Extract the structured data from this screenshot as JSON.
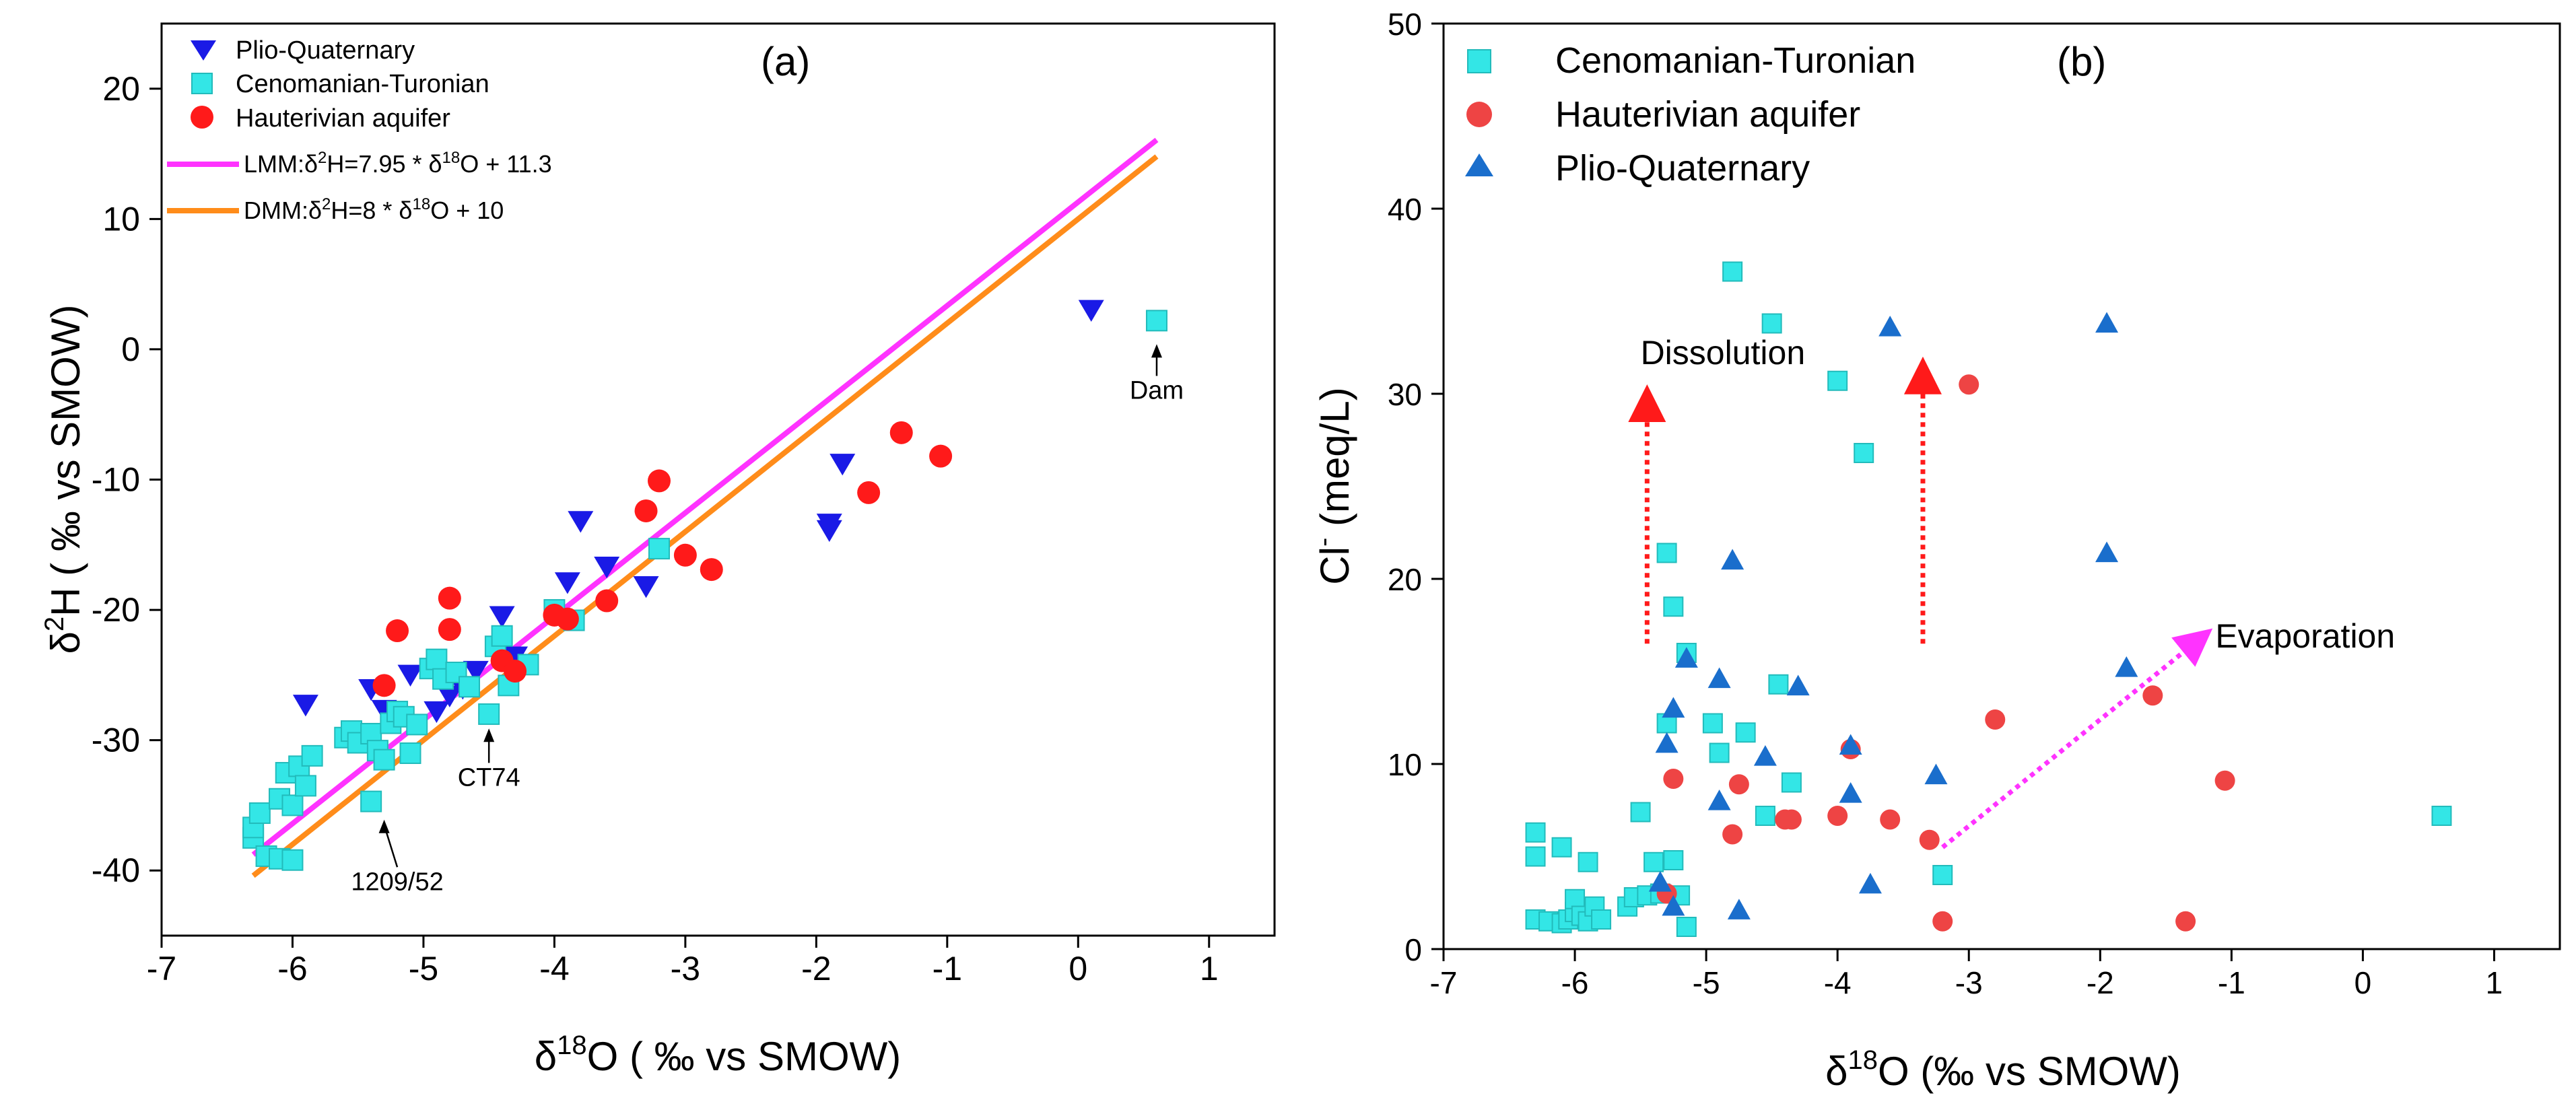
{
  "chart_data": [
    {
      "type": "scatter",
      "panel_label": "(a)",
      "xlabel_pre": "δ",
      "xlabel_sup": "18",
      "xlabel_post": "O ( ‰ vs SMOW)",
      "ylabel_pre": "δ",
      "ylabel_sup": "2",
      "ylabel_post": "H ( ‰ vs SMOW)",
      "xlim": [
        -7,
        1.5
      ],
      "ylim": [
        -45,
        25
      ],
      "xticks": [
        -7,
        -6,
        -5,
        -4,
        -3,
        -2,
        -1,
        0,
        1
      ],
      "yticks": [
        -40,
        -30,
        -20,
        -10,
        0,
        10,
        20
      ],
      "series": [
        {
          "name": "Plio-Quaternary",
          "marker": "triangle-down",
          "color": "#1a1ae6",
          "points": [
            [
              -5.9,
              -27.3
            ],
            [
              -5.4,
              -26.1
            ],
            [
              -5.3,
              -27.7
            ],
            [
              -5.1,
              -25.0
            ],
            [
              -4.9,
              -27.8
            ],
            [
              -4.8,
              -26.6
            ],
            [
              -4.7,
              -26.0
            ],
            [
              -4.6,
              -24.7
            ],
            [
              -4.4,
              -20.5
            ],
            [
              -4.3,
              -23.6
            ],
            [
              -3.9,
              -17.9
            ],
            [
              -3.8,
              -13.2
            ],
            [
              -3.6,
              -16.7
            ],
            [
              -3.3,
              -18.2
            ],
            [
              -1.9,
              -13.9
            ],
            [
              -1.9,
              -13.4
            ],
            [
              -1.8,
              -8.8
            ],
            [
              0.1,
              3.0
            ]
          ]
        },
        {
          "name": "Cenomanian-Turonian",
          "marker": "square",
          "color": "#33e6e6",
          "points": [
            [
              -6.3,
              -37.5
            ],
            [
              -6.3,
              -36.7
            ],
            [
              -6.2,
              -38.9
            ],
            [
              -6.25,
              -35.6
            ],
            [
              -6.1,
              -39.1
            ],
            [
              -6.0,
              -39.2
            ],
            [
              -6.1,
              -34.5
            ],
            [
              -6.05,
              -32.5
            ],
            [
              -6.0,
              -35.0
            ],
            [
              -5.95,
              -32.0
            ],
            [
              -5.9,
              -33.5
            ],
            [
              -5.85,
              -31.2
            ],
            [
              -5.6,
              -29.8
            ],
            [
              -5.55,
              -29.3
            ],
            [
              -5.5,
              -30.2
            ],
            [
              -5.4,
              -29.5
            ],
            [
              -5.35,
              -30.8
            ],
            [
              -5.3,
              -31.5
            ],
            [
              -5.25,
              -28.7
            ],
            [
              -5.2,
              -27.8
            ],
            [
              -5.15,
              -28.2
            ],
            [
              -5.1,
              -31.0
            ],
            [
              -5.05,
              -28.8
            ],
            [
              -4.95,
              -24.5
            ],
            [
              -4.9,
              -23.8
            ],
            [
              -4.85,
              -25.3
            ],
            [
              -4.75,
              -24.8
            ],
            [
              -4.65,
              -25.9
            ],
            [
              -4.45,
              -22.8
            ],
            [
              -4.4,
              -22.0
            ],
            [
              -4.35,
              -25.8
            ],
            [
              -4.2,
              -24.2
            ],
            [
              -4.0,
              -20.0
            ],
            [
              -3.85,
              -20.8
            ],
            [
              -3.2,
              -15.3
            ],
            [
              -5.4,
              -34.7
            ],
            [
              -4.5,
              -28.0
            ],
            [
              0.6,
              2.2
            ]
          ]
        },
        {
          "name": "Hauterivian aquifer",
          "marker": "circle",
          "color": "#ff1a1a",
          "points": [
            [
              -5.3,
              -25.8
            ],
            [
              -5.2,
              -21.6
            ],
            [
              -4.8,
              -21.5
            ],
            [
              -4.8,
              -19.1
            ],
            [
              -4.4,
              -23.9
            ],
            [
              -4.3,
              -24.7
            ],
            [
              -4.0,
              -20.4
            ],
            [
              -3.9,
              -20.7
            ],
            [
              -3.6,
              -19.3
            ],
            [
              -3.3,
              -12.4
            ],
            [
              -3.2,
              -10.1
            ],
            [
              -3.0,
              -15.8
            ],
            [
              -2.8,
              -16.9
            ],
            [
              -1.6,
              -11.0
            ],
            [
              -1.35,
              -6.4
            ],
            [
              -1.05,
              -8.2
            ]
          ]
        }
      ],
      "lines": [
        {
          "name": "LMM:δ²H=7.95 * δ¹⁸O + 11.3",
          "slope": 7.95,
          "intercept": 11.3,
          "x_range": [
            -6.3,
            0.6
          ],
          "color": "#ff33ff"
        },
        {
          "name": "DMM:δ²H=8 * δ¹⁸O + 10",
          "slope": 8,
          "intercept": 10,
          "x_range": [
            -6.3,
            0.6
          ],
          "color": "#ff8c1a"
        }
      ],
      "legend_labels": {
        "s0": "Plio-Quaternary",
        "s1": "Cenomanian-Turonian",
        "s2": "Hauterivian aquifer",
        "l0_pre": "LMM:δ",
        "l0_sup1": "2",
        "l0_mid": "H=7.95 * δ",
        "l0_sup2": "18",
        "l0_post": "O + 11.3",
        "l1_pre": "DMM:δ",
        "l1_sup1": "2",
        "l1_mid": "H=8 * δ",
        "l1_sup2": "18",
        "l1_post": "O + 10"
      },
      "annotations": [
        {
          "text": "Dam",
          "at": [
            0.6,
            0.5
          ],
          "text_at": [
            0.6,
            -3.8
          ]
        },
        {
          "text": "CT74",
          "at": [
            -4.5,
            -29.0
          ],
          "text_at": [
            -4.5,
            -33.5
          ]
        },
        {
          "text": "1209/52",
          "at": [
            -5.3,
            -36.0
          ],
          "text_at": [
            -5.2,
            -41.5
          ]
        }
      ]
    },
    {
      "type": "scatter",
      "panel_label": "(b)",
      "xlabel_pre": "δ",
      "xlabel_sup": "18",
      "xlabel_post": "O (‰ vs SMOW)",
      "ylabel_pre": "Cl",
      "ylabel_sup": "-",
      "ylabel_post": " (meq/L)",
      "xlim": [
        -7,
        1.5
      ],
      "ylim": [
        0,
        50
      ],
      "xticks": [
        -7,
        -6,
        -5,
        -4,
        -3,
        -2,
        -1,
        0,
        1
      ],
      "yticks": [
        0,
        10,
        20,
        30,
        40,
        50
      ],
      "series": [
        {
          "name": "Cenomanian-Turonian",
          "marker": "square",
          "color": "#33e6e6",
          "points": [
            [
              -6.3,
              6.3
            ],
            [
              -6.3,
              5.0
            ],
            [
              -6.3,
              1.6
            ],
            [
              -6.2,
              1.5
            ],
            [
              -6.1,
              5.5
            ],
            [
              -6.1,
              1.4
            ],
            [
              -6.05,
              1.6
            ],
            [
              -6.0,
              2.0
            ],
            [
              -6.0,
              2.7
            ],
            [
              -5.95,
              1.8
            ],
            [
              -5.9,
              4.7
            ],
            [
              -5.9,
              1.5
            ],
            [
              -5.85,
              2.3
            ],
            [
              -5.8,
              1.6
            ],
            [
              -5.6,
              2.3
            ],
            [
              -5.55,
              2.8
            ],
            [
              -5.5,
              7.4
            ],
            [
              -5.45,
              2.9
            ],
            [
              -5.4,
              4.7
            ],
            [
              -5.35,
              3.0
            ],
            [
              -5.3,
              21.4
            ],
            [
              -5.3,
              12.2
            ],
            [
              -5.25,
              18.5
            ],
            [
              -5.25,
              4.8
            ],
            [
              -5.2,
              2.9
            ],
            [
              -5.15,
              16.0
            ],
            [
              -5.15,
              1.2
            ],
            [
              -4.95,
              12.2
            ],
            [
              -4.9,
              10.6
            ],
            [
              -4.8,
              36.6
            ],
            [
              -4.7,
              11.7
            ],
            [
              -4.55,
              7.2
            ],
            [
              -4.5,
              33.8
            ],
            [
              -4.45,
              14.3
            ],
            [
              -4.35,
              9.0
            ],
            [
              -4.0,
              30.7
            ],
            [
              -3.8,
              26.8
            ],
            [
              -3.2,
              4.0
            ],
            [
              0.6,
              7.2
            ]
          ]
        },
        {
          "name": "Hauterivian aquifer",
          "marker": "circle",
          "color": "#ee4444",
          "points": [
            [
              -5.25,
              9.2
            ],
            [
              -4.8,
              6.2
            ],
            [
              -4.75,
              8.9
            ],
            [
              -4.4,
              7.0
            ],
            [
              -4.35,
              7.0
            ],
            [
              -4.0,
              7.2
            ],
            [
              -3.9,
              10.8
            ],
            [
              -3.6,
              7.0
            ],
            [
              -3.3,
              5.9
            ],
            [
              -3.2,
              1.5
            ],
            [
              -3.0,
              30.5
            ],
            [
              -2.8,
              12.4
            ],
            [
              -1.6,
              13.7
            ],
            [
              -1.35,
              1.5
            ],
            [
              -1.05,
              9.1
            ],
            [
              -5.3,
              3.0
            ]
          ]
        },
        {
          "name": "Plio-Quaternary",
          "marker": "triangle-up",
          "color": "#1a6ecc",
          "points": [
            [
              -5.35,
              3.6
            ],
            [
              -5.3,
              11.1
            ],
            [
              -5.25,
              13.0
            ],
            [
              -5.25,
              2.3
            ],
            [
              -5.15,
              15.7
            ],
            [
              -4.9,
              14.6
            ],
            [
              -4.9,
              8.0
            ],
            [
              -4.8,
              21.0
            ],
            [
              -4.75,
              2.1
            ],
            [
              -4.55,
              10.4
            ],
            [
              -4.3,
              14.2
            ],
            [
              -3.9,
              11.0
            ],
            [
              -3.9,
              8.4
            ],
            [
              -3.75,
              3.5
            ],
            [
              -3.6,
              33.6
            ],
            [
              -3.25,
              9.4
            ],
            [
              -1.95,
              33.8
            ],
            [
              -1.95,
              21.4
            ],
            [
              -1.8,
              15.2
            ]
          ]
        }
      ],
      "arrows": [
        {
          "from": [
            -5.45,
            16.5
          ],
          "to": [
            -5.45,
            30.0
          ],
          "color": "#ff1a1a"
        },
        {
          "from": [
            -3.35,
            16.5
          ],
          "to": [
            -3.35,
            31.5
          ],
          "color": "#ff1a1a"
        },
        {
          "from": [
            -3.2,
            5.5
          ],
          "to": [
            -1.2,
            17.0
          ],
          "color": "#ff33ff"
        }
      ],
      "annotations": [
        {
          "text": "Dissolution",
          "at": [
            -5.5,
            31.6
          ]
        },
        {
          "text": "Evaporation",
          "at": [
            -1.2,
            16.3
          ]
        }
      ]
    }
  ]
}
